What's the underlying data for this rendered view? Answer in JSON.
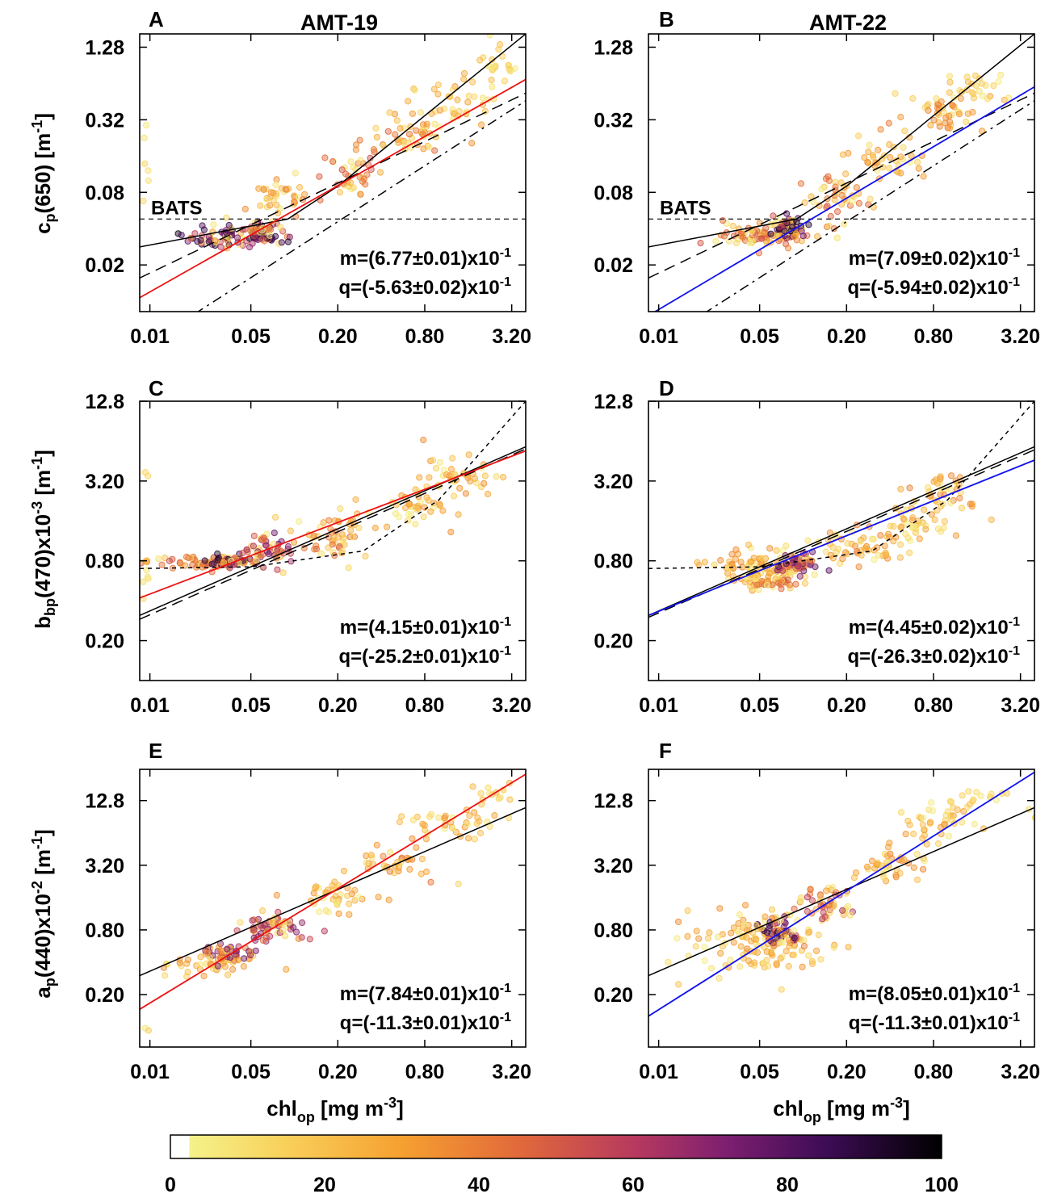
{
  "colors": {
    "red": "#ee1111",
    "blue": "#1111ee",
    "black": "#000000"
  },
  "colorbar": {
    "ticks": [
      "0",
      "20",
      "40",
      "60",
      "80",
      "100"
    ],
    "stops": [
      "#ffffff",
      "#f4f28a",
      "#f9b43a",
      "#f08530",
      "#d4573d",
      "#a83268",
      "#6b1a6e",
      "#3a0b50",
      "#000000"
    ]
  },
  "chart_data": [
    {
      "type": "scatter",
      "panel": "A",
      "title": "AMT-19",
      "title_color": "#ee1111",
      "xlabel": "",
      "ylabel": "cp(650) [m-1]",
      "x_ticks": [
        "0.01",
        "0.05",
        "0.20",
        "0.80",
        "3.20"
      ],
      "x_tick_values": [
        0.01,
        0.05,
        0.2,
        0.8,
        3.2
      ],
      "y_ticks": [
        "1.28",
        "0.32",
        "0.08",
        "0.02"
      ],
      "y_tick_values": [
        1.28,
        0.32,
        0.08,
        0.02
      ],
      "xlim": [
        0.0085,
        4.0
      ],
      "ylim": [
        0.0082,
        1.65
      ],
      "annotation_m": "m=(6.77±0.01)x10",
      "annotation_q": "q=(-5.63±0.02)x10",
      "exp_m": "-1",
      "exp_q": "-1",
      "bats_label": "BATS",
      "bats_value": 0.048,
      "fit_line": {
        "color": "red",
        "x": [
          0.0085,
          4.0
        ],
        "y": [
          0.0107,
          0.691
        ]
      },
      "reference_lines": [
        {
          "style": "solid",
          "x": [
            0.0085,
            0.09,
            0.2,
            4.0
          ],
          "y": [
            0.0282,
            0.048,
            0.09,
            1.65
          ]
        },
        {
          "style": "dashed",
          "x": [
            0.0085,
            4.0
          ],
          "y": [
            0.0156,
            0.532
          ]
        },
        {
          "style": "dashdot",
          "x": [
            0.0085,
            4.0
          ],
          "y": [
            0.004,
            0.46
          ]
        }
      ],
      "clusters": [
        {
          "x": 0.035,
          "y": 0.034,
          "n": 70,
          "sx": 0.28,
          "sy": 0.08,
          "density": 90
        },
        {
          "x": 0.06,
          "y": 0.038,
          "n": 60,
          "sx": 0.12,
          "sy": 0.08,
          "density": 85
        },
        {
          "x": 0.08,
          "y": 0.07,
          "n": 40,
          "sx": 0.2,
          "sy": 0.18,
          "density": 35
        },
        {
          "x": 0.25,
          "y": 0.11,
          "n": 40,
          "sx": 0.2,
          "sy": 0.2,
          "density": 45
        },
        {
          "x": 0.6,
          "y": 0.22,
          "n": 40,
          "sx": 0.25,
          "sy": 0.15,
          "density": 40
        },
        {
          "x": 1.2,
          "y": 0.45,
          "n": 40,
          "sx": 0.3,
          "sy": 0.18,
          "density": 25
        },
        {
          "x": 2.3,
          "y": 0.95,
          "n": 22,
          "sx": 0.2,
          "sy": 0.15,
          "density": 15
        },
        {
          "x": 0.0095,
          "y": 0.12,
          "n": 6,
          "sx": 0.05,
          "sy": 0.4,
          "density": 8
        }
      ]
    },
    {
      "type": "scatter",
      "panel": "B",
      "title": "AMT-22",
      "title_color": "#1111ee",
      "xlabel": "",
      "ylabel": "",
      "x_ticks": [
        "0.01",
        "0.05",
        "0.20",
        "0.80",
        "3.20"
      ],
      "x_tick_values": [
        0.01,
        0.05,
        0.2,
        0.8,
        3.2
      ],
      "y_ticks": [
        "1.28",
        "0.32",
        "0.08",
        "0.02"
      ],
      "y_tick_values": [
        1.28,
        0.32,
        0.08,
        0.02
      ],
      "xlim": [
        0.0085,
        4.0
      ],
      "ylim": [
        0.0082,
        1.65
      ],
      "annotation_m": "m=(7.09±0.02)x10",
      "annotation_q": "q=(-5.94±0.02)x10",
      "exp_m": "-1",
      "exp_q": "-1",
      "bats_label": "BATS",
      "bats_value": 0.048,
      "fit_line": {
        "color": "blue",
        "x": [
          0.0085,
          4.0
        ],
        "y": [
          0.0076,
          0.6
        ]
      },
      "reference_lines": [
        {
          "style": "solid",
          "x": [
            0.0085,
            0.09,
            0.2,
            4.0
          ],
          "y": [
            0.0282,
            0.048,
            0.09,
            1.65
          ]
        },
        {
          "style": "dashed",
          "x": [
            0.0085,
            4.0
          ],
          "y": [
            0.0156,
            0.532
          ]
        },
        {
          "style": "dashdot",
          "x": [
            0.0085,
            4.0
          ],
          "y": [
            0.004,
            0.46
          ]
        }
      ],
      "clusters": [
        {
          "x": 0.05,
          "y": 0.035,
          "n": 80,
          "sx": 0.35,
          "sy": 0.09,
          "density": 45
        },
        {
          "x": 0.08,
          "y": 0.042,
          "n": 60,
          "sx": 0.12,
          "sy": 0.08,
          "density": 90
        },
        {
          "x": 0.18,
          "y": 0.07,
          "n": 45,
          "sx": 0.22,
          "sy": 0.18,
          "density": 40
        },
        {
          "x": 0.4,
          "y": 0.15,
          "n": 40,
          "sx": 0.25,
          "sy": 0.2,
          "density": 30
        },
        {
          "x": 0.9,
          "y": 0.35,
          "n": 45,
          "sx": 0.25,
          "sy": 0.15,
          "density": 35
        },
        {
          "x": 1.6,
          "y": 0.6,
          "n": 25,
          "sx": 0.25,
          "sy": 0.12,
          "density": 18
        }
      ]
    },
    {
      "type": "scatter",
      "panel": "C",
      "title": "",
      "xlabel": "",
      "ylabel": "bbp(470)x10-3 [m-1]",
      "x_ticks": [
        "0.01",
        "0.05",
        "0.20",
        "0.80",
        "3.20"
      ],
      "x_tick_values": [
        0.01,
        0.05,
        0.2,
        0.8,
        3.2
      ],
      "y_ticks": [
        "12.8",
        "3.20",
        "0.80",
        "0.20"
      ],
      "y_tick_values": [
        12.8,
        3.2,
        0.8,
        0.2
      ],
      "xlim": [
        0.0085,
        4.0
      ],
      "ylim": [
        0.1,
        12.8
      ],
      "annotation_m": "m=(4.15±0.01)x10",
      "annotation_q": "q=(-25.2±0.01)x10",
      "exp_m": "-1",
      "exp_q": "-1",
      "fit_line": {
        "color": "red",
        "x": [
          0.0085,
          4.0
        ],
        "y": [
          0.42,
          5.4
        ]
      },
      "reference_lines": [
        {
          "style": "solid",
          "x": [
            0.0085,
            4.0
          ],
          "y": [
            0.31,
            5.8
          ]
        },
        {
          "style": "dashed",
          "x": [
            0.0085,
            4.0
          ],
          "y": [
            0.29,
            5.6
          ]
        },
        {
          "style": "dotted",
          "x": [
            0.0085,
            0.05,
            0.3,
            1.0,
            4.0
          ],
          "y": [
            0.7,
            0.72,
            0.95,
            2.3,
            12.8
          ]
        }
      ],
      "clusters": [
        {
          "x": 0.025,
          "y": 0.78,
          "n": 70,
          "sx": 0.35,
          "sy": 0.05,
          "density": 45
        },
        {
          "x": 0.035,
          "y": 0.8,
          "n": 40,
          "sx": 0.12,
          "sy": 0.04,
          "density": 90
        },
        {
          "x": 0.065,
          "y": 0.95,
          "n": 60,
          "sx": 0.18,
          "sy": 0.12,
          "density": 70
        },
        {
          "x": 0.2,
          "y": 1.3,
          "n": 50,
          "sx": 0.25,
          "sy": 0.18,
          "density": 40
        },
        {
          "x": 0.6,
          "y": 2.0,
          "n": 40,
          "sx": 0.3,
          "sy": 0.15,
          "density": 30
        },
        {
          "x": 1.3,
          "y": 3.6,
          "n": 40,
          "sx": 0.3,
          "sy": 0.15,
          "density": 28
        },
        {
          "x": 0.0095,
          "y": 0.5,
          "n": 4,
          "sx": 0.03,
          "sy": 0.2,
          "density": 8
        },
        {
          "x": 0.0095,
          "y": 3.6,
          "n": 2,
          "sx": 0.02,
          "sy": 0.05,
          "density": 8
        }
      ]
    },
    {
      "type": "scatter",
      "panel": "D",
      "title": "",
      "xlabel": "",
      "ylabel": "",
      "x_ticks": [
        "0.01",
        "0.05",
        "0.20",
        "0.80",
        "3.20"
      ],
      "x_tick_values": [
        0.01,
        0.05,
        0.2,
        0.8,
        3.2
      ],
      "y_ticks": [
        "12.8",
        "3.20",
        "0.80",
        "0.20"
      ],
      "y_tick_values": [
        12.8,
        3.2,
        0.8,
        0.2
      ],
      "xlim": [
        0.0085,
        4.0
      ],
      "ylim": [
        0.1,
        12.8
      ],
      "annotation_m": "m=(4.45±0.02)x10",
      "annotation_q": "q=(-26.3±0.02)x10",
      "exp_m": "-1",
      "exp_q": "-1",
      "fit_line": {
        "color": "blue",
        "x": [
          0.0085,
          4.0
        ],
        "y": [
          0.31,
          4.6
        ]
      },
      "reference_lines": [
        {
          "style": "solid",
          "x": [
            0.0085,
            4.0
          ],
          "y": [
            0.31,
            5.8
          ]
        },
        {
          "style": "dashed",
          "x": [
            0.0085,
            4.0
          ],
          "y": [
            0.3,
            5.5
          ]
        },
        {
          "style": "dotted",
          "x": [
            0.0085,
            0.05,
            0.3,
            1.0,
            4.0
          ],
          "y": [
            0.7,
            0.72,
            0.95,
            2.3,
            12.8
          ]
        }
      ],
      "clusters": [
        {
          "x": 0.05,
          "y": 0.72,
          "n": 90,
          "sx": 0.3,
          "sy": 0.12,
          "density": 30
        },
        {
          "x": 0.06,
          "y": 0.55,
          "n": 40,
          "sx": 0.2,
          "sy": 0.06,
          "density": 45
        },
        {
          "x": 0.09,
          "y": 0.75,
          "n": 60,
          "sx": 0.15,
          "sy": 0.1,
          "density": 75
        },
        {
          "x": 0.25,
          "y": 1.0,
          "n": 50,
          "sx": 0.25,
          "sy": 0.12,
          "density": 35
        },
        {
          "x": 0.6,
          "y": 1.4,
          "n": 40,
          "sx": 0.25,
          "sy": 0.15,
          "density": 25
        },
        {
          "x": 0.9,
          "y": 2.4,
          "n": 40,
          "sx": 0.2,
          "sy": 0.18,
          "density": 35
        }
      ]
    },
    {
      "type": "scatter",
      "panel": "E",
      "title": "",
      "xlabel": "chlop [mg m-3]",
      "ylabel": "ap(440)x10-2 [m-1]",
      "x_ticks": [
        "0.01",
        "0.05",
        "0.20",
        "0.80",
        "3.20"
      ],
      "x_tick_values": [
        0.01,
        0.05,
        0.2,
        0.8,
        3.2
      ],
      "y_ticks": [
        "12.8",
        "3.20",
        "0.80",
        "0.20"
      ],
      "y_tick_values": [
        12.8,
        3.2,
        0.8,
        0.2
      ],
      "xlim": [
        0.0085,
        4.0
      ],
      "ylim": [
        0.065,
        25.0
      ],
      "annotation_m": "m=(7.84±0.01)x10",
      "annotation_q": "q=(-11.3±0.01)x10",
      "exp_m": "-1",
      "exp_q": "-1",
      "fit_line": {
        "color": "red",
        "x": [
          0.0085,
          4.0
        ],
        "y": [
          0.146,
          22.5
        ]
      },
      "reference_lines": [
        {
          "style": "solid",
          "x": [
            0.0085,
            4.0
          ],
          "y": [
            0.3,
            11.0
          ]
        }
      ],
      "clusters": [
        {
          "x": 0.025,
          "y": 0.4,
          "n": 40,
          "sx": 0.3,
          "sy": 0.12,
          "density": 30
        },
        {
          "x": 0.035,
          "y": 0.48,
          "n": 50,
          "sx": 0.15,
          "sy": 0.08,
          "density": 70
        },
        {
          "x": 0.07,
          "y": 0.85,
          "n": 60,
          "sx": 0.2,
          "sy": 0.12,
          "density": 65
        },
        {
          "x": 0.2,
          "y": 1.6,
          "n": 40,
          "sx": 0.25,
          "sy": 0.15,
          "density": 30
        },
        {
          "x": 0.5,
          "y": 3.3,
          "n": 35,
          "sx": 0.25,
          "sy": 0.15,
          "density": 35
        },
        {
          "x": 1.2,
          "y": 7.5,
          "n": 40,
          "sx": 0.3,
          "sy": 0.15,
          "density": 28
        },
        {
          "x": 2.5,
          "y": 14.5,
          "n": 14,
          "sx": 0.2,
          "sy": 0.1,
          "density": 20
        },
        {
          "x": 0.0095,
          "y": 0.1,
          "n": 2,
          "sx": 0.02,
          "sy": 0.03,
          "density": 10
        }
      ]
    },
    {
      "type": "scatter",
      "panel": "F",
      "title": "",
      "xlabel": "chlop [mg m-3]",
      "ylabel": "",
      "x_ticks": [
        "0.01",
        "0.05",
        "0.20",
        "0.80",
        "3.20"
      ],
      "x_tick_values": [
        0.01,
        0.05,
        0.2,
        0.8,
        3.2
      ],
      "y_ticks": [
        "12.8",
        "3.20",
        "0.80",
        "0.20"
      ],
      "y_tick_values": [
        12.8,
        3.2,
        0.8,
        0.2
      ],
      "xlim": [
        0.0085,
        4.0
      ],
      "ylim": [
        0.065,
        25.0
      ],
      "annotation_m": "m=(8.05±0.01)x10",
      "annotation_q": "q=(-11.3±0.01)x10",
      "exp_m": "-1",
      "exp_q": "-1",
      "fit_line": {
        "color": "blue",
        "x": [
          0.0085,
          4.0
        ],
        "y": [
          0.126,
          23.5
        ]
      },
      "reference_lines": [
        {
          "style": "solid",
          "x": [
            0.0085,
            4.0
          ],
          "y": [
            0.3,
            11.0
          ]
        }
      ],
      "clusters": [
        {
          "x": 0.05,
          "y": 0.6,
          "n": 130,
          "sx": 0.45,
          "sy": 0.25,
          "density": 28
        },
        {
          "x": 0.07,
          "y": 0.8,
          "n": 60,
          "sx": 0.15,
          "sy": 0.12,
          "density": 85
        },
        {
          "x": 0.15,
          "y": 1.4,
          "n": 50,
          "sx": 0.2,
          "sy": 0.12,
          "density": 55
        },
        {
          "x": 0.4,
          "y": 3.2,
          "n": 40,
          "sx": 0.25,
          "sy": 0.15,
          "density": 30
        },
        {
          "x": 0.85,
          "y": 7.5,
          "n": 40,
          "sx": 0.25,
          "sy": 0.15,
          "density": 25
        },
        {
          "x": 1.8,
          "y": 13.0,
          "n": 18,
          "sx": 0.25,
          "sy": 0.1,
          "density": 12
        }
      ]
    }
  ]
}
